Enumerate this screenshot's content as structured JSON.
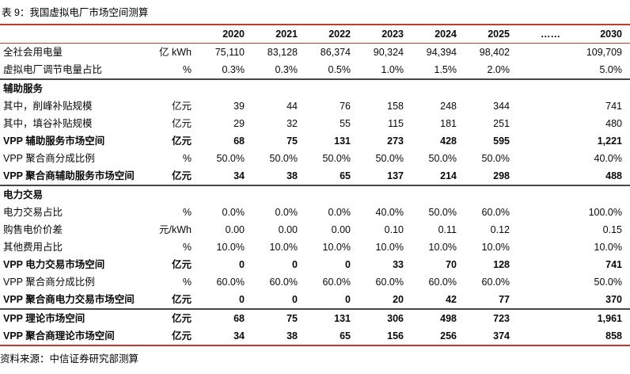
{
  "title": "表 9：我国虚拟电厂市场空间测算",
  "source": "资料来源：中信证券研究部测算",
  "accent_colors": {
    "rule_red": "#c13a30",
    "section_divider_gray": "#474747"
  },
  "table": {
    "year_headers": [
      "",
      "",
      "2020",
      "2021",
      "2022",
      "2023",
      "2024",
      "2025",
      "……",
      "2030"
    ],
    "rows": [
      {
        "type": "data",
        "bold": false,
        "divider_above": false,
        "label": "全社会用电量",
        "unit": "亿 kWh",
        "values": [
          "75,110",
          "83,128",
          "86,374",
          "90,324",
          "94,394",
          "98,402",
          "",
          "109,709"
        ]
      },
      {
        "type": "data",
        "bold": false,
        "divider_above": false,
        "label": "虚拟电厂调节电量占比",
        "unit": "%",
        "values": [
          "0.3%",
          "0.3%",
          "0.5%",
          "1.0%",
          "1.5%",
          "2.0%",
          "",
          "5.0%"
        ]
      },
      {
        "type": "section",
        "bold": true,
        "divider_above": true,
        "label": "辅助服务",
        "unit": "",
        "values": [
          "",
          "",
          "",
          "",
          "",
          "",
          "",
          ""
        ]
      },
      {
        "type": "data",
        "bold": false,
        "divider_above": false,
        "label": "其中，削峰补贴规模",
        "unit": "亿元",
        "values": [
          "39",
          "44",
          "76",
          "158",
          "248",
          "344",
          "",
          "741"
        ]
      },
      {
        "type": "data",
        "bold": false,
        "divider_above": false,
        "label": "其中，填谷补贴规模",
        "unit": "亿元",
        "values": [
          "29",
          "32",
          "55",
          "115",
          "181",
          "251",
          "",
          "480"
        ]
      },
      {
        "type": "data",
        "bold": true,
        "divider_above": false,
        "label": "VPP 辅助服务市场空间",
        "unit": "亿元",
        "values": [
          "68",
          "75",
          "131",
          "273",
          "428",
          "595",
          "",
          "1,221"
        ]
      },
      {
        "type": "data",
        "bold": false,
        "divider_above": false,
        "label": "VPP 聚合商分成比例",
        "unit": "%",
        "values": [
          "50.0%",
          "50.0%",
          "50.0%",
          "50.0%",
          "50.0%",
          "50.0%",
          "",
          "40.0%"
        ]
      },
      {
        "type": "data",
        "bold": true,
        "divider_above": false,
        "label": "VPP 聚合商辅助服务市场空间",
        "unit": "亿元",
        "values": [
          "34",
          "38",
          "65",
          "137",
          "214",
          "298",
          "",
          "488"
        ]
      },
      {
        "type": "section",
        "bold": true,
        "divider_above": true,
        "label": "电力交易",
        "unit": "",
        "values": [
          "",
          "",
          "",
          "",
          "",
          "",
          "",
          ""
        ]
      },
      {
        "type": "data",
        "bold": false,
        "divider_above": false,
        "label": "电力交易占比",
        "unit": "%",
        "values": [
          "0.0%",
          "0.0%",
          "0.0%",
          "40.0%",
          "50.0%",
          "60.0%",
          "",
          "100.0%"
        ]
      },
      {
        "type": "data",
        "bold": false,
        "divider_above": false,
        "label": "购售电价价差",
        "unit": "元/kWh",
        "values": [
          "0.00",
          "0.00",
          "0.00",
          "0.10",
          "0.11",
          "0.12",
          "",
          "0.15"
        ]
      },
      {
        "type": "data",
        "bold": false,
        "divider_above": false,
        "label": "其他费用占比",
        "unit": "%",
        "values": [
          "10.0%",
          "10.0%",
          "10.0%",
          "10.0%",
          "10.0%",
          "10.0%",
          "",
          "10.0%"
        ]
      },
      {
        "type": "data",
        "bold": true,
        "divider_above": false,
        "label": "VPP 电力交易市场空间",
        "unit": "亿元",
        "values": [
          "0",
          "0",
          "0",
          "33",
          "70",
          "128",
          "",
          "741"
        ]
      },
      {
        "type": "data",
        "bold": false,
        "divider_above": false,
        "label": "VPP 聚合商分成比例",
        "unit": "%",
        "values": [
          "60.0%",
          "60.0%",
          "60.0%",
          "60.0%",
          "60.0%",
          "60.0%",
          "",
          "50.0%"
        ]
      },
      {
        "type": "data",
        "bold": true,
        "divider_above": false,
        "label": "VPP 聚合商电力交易市场空间",
        "unit": "亿元",
        "values": [
          "0",
          "0",
          "0",
          "20",
          "42",
          "77",
          "",
          "370"
        ]
      },
      {
        "type": "data",
        "bold": true,
        "divider_above": true,
        "label": "VPP 理论市场空间",
        "unit": "亿元",
        "values": [
          "68",
          "75",
          "131",
          "306",
          "498",
          "723",
          "",
          "1,961"
        ]
      },
      {
        "type": "data",
        "bold": true,
        "divider_above": false,
        "label": "VPP 聚合商理论市场空间",
        "unit": "亿元",
        "values": [
          "34",
          "38",
          "65",
          "156",
          "256",
          "374",
          "",
          "858"
        ]
      }
    ]
  }
}
